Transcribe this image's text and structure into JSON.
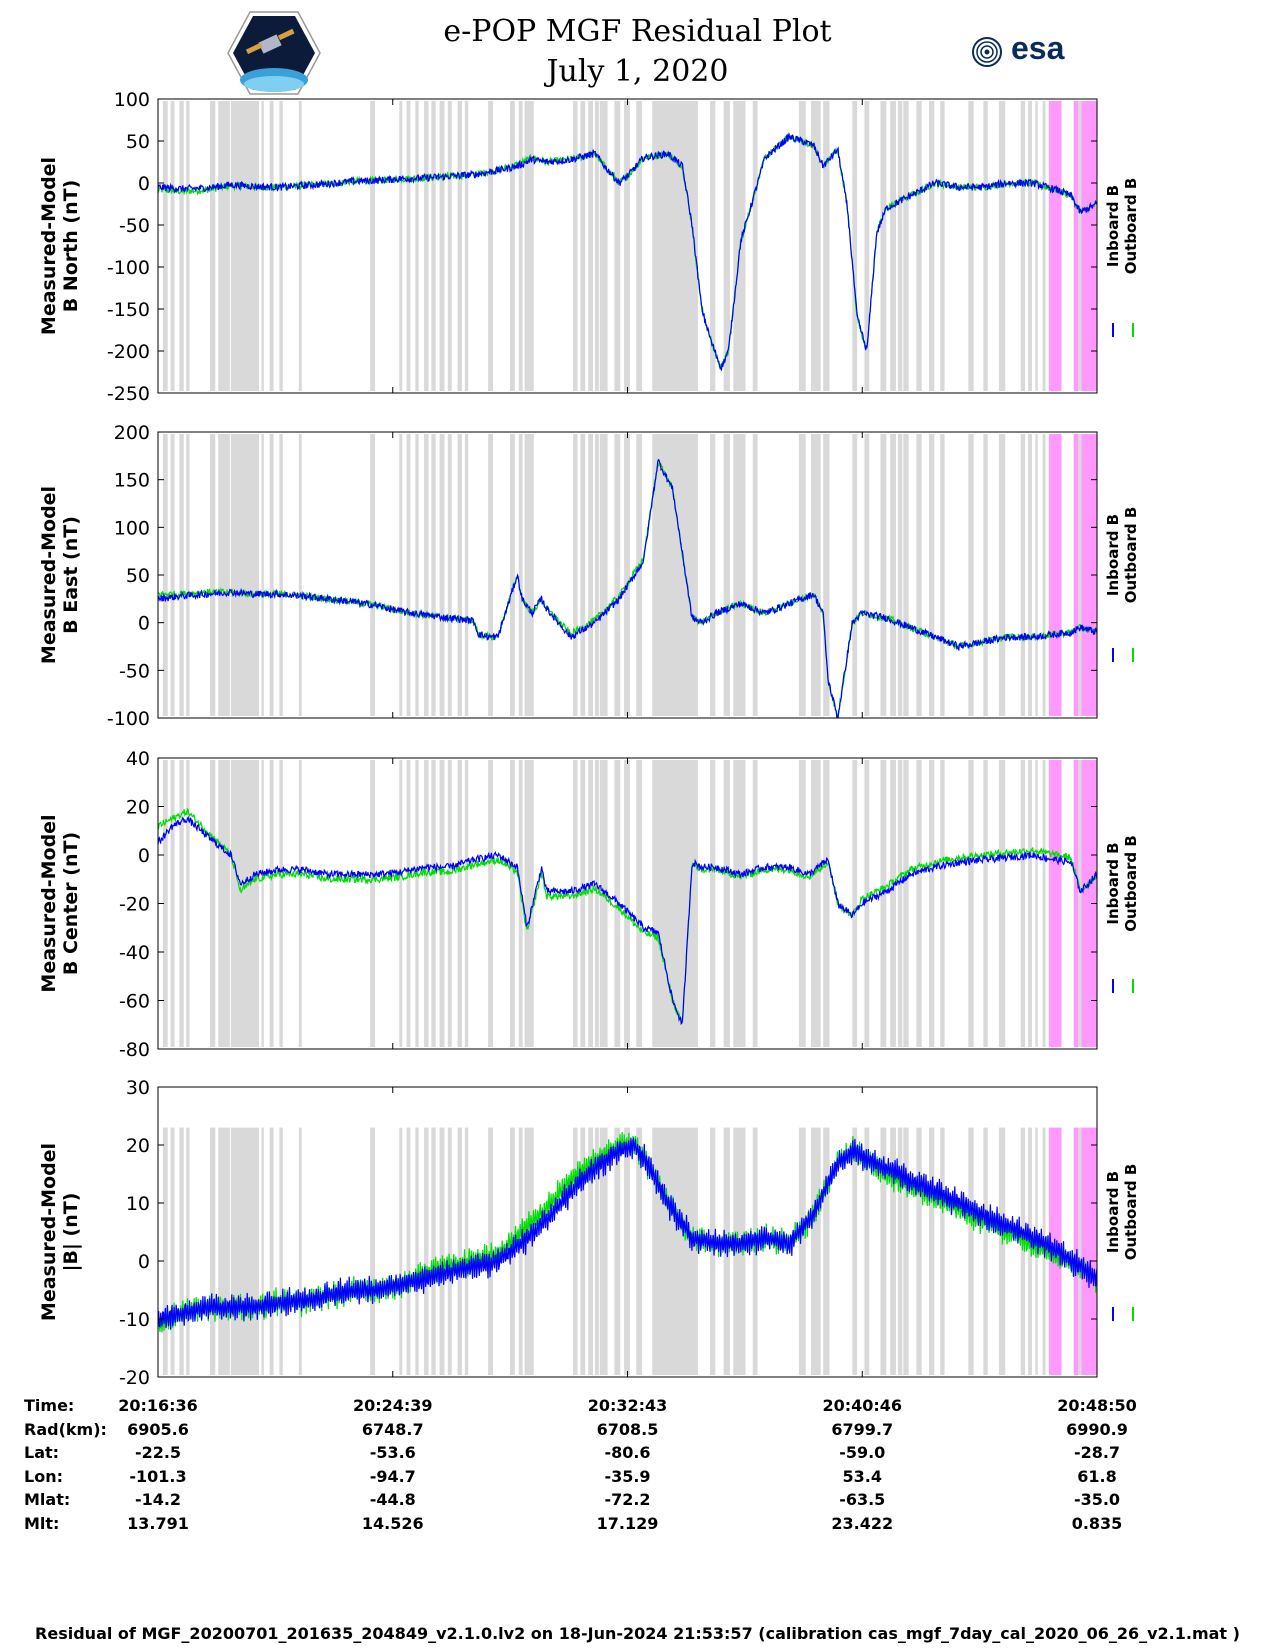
{
  "title_line1": "e-POP MGF Residual Plot",
  "title_line2": "July 1, 2020",
  "logos": {
    "left": "cassiope-satellite-logo",
    "right_text": "esa"
  },
  "colors": {
    "inboard": "#0000ff",
    "outboard": "#00dd00",
    "gap": "#d9d9d9",
    "flag": "#ff99ff",
    "axis": "#000000"
  },
  "legend": {
    "inboard": "Inboard B",
    "outboard": "Outboard B"
  },
  "time_axis": {
    "ticks": [
      "20:16:36",
      "20:24:39",
      "20:32:43",
      "20:40:46",
      "20:48:50"
    ],
    "start_s": 0,
    "end_s": 1934
  },
  "info_table": {
    "labels": [
      "Time:",
      "Rad(km):",
      "Lat:",
      "Lon:",
      "Mlat:",
      "Mlt:"
    ],
    "columns": [
      [
        "20:16:36",
        "6905.6",
        "-22.5",
        "-101.3",
        "-14.2",
        "13.791"
      ],
      [
        "20:24:39",
        "6748.7",
        "-53.6",
        "-94.7",
        "-44.8",
        "14.526"
      ],
      [
        "20:32:43",
        "6708.5",
        "-80.6",
        "-35.9",
        "-72.2",
        "17.129"
      ],
      [
        "20:40:46",
        "6799.7",
        "-59.0",
        "53.4",
        "-63.5",
        "23.422"
      ],
      [
        "20:48:50",
        "6990.9",
        "-28.7",
        "61.8",
        "-35.0",
        "0.835"
      ]
    ]
  },
  "footer": "Residual of MGF_20200701_201635_204849_v2.1.0.lv2 on 18-Jun-2024 21:53:57 (calibration cas_mgf_7day_cal_2020_06_26_v2.1.mat )",
  "chart_data": [
    {
      "type": "line",
      "ylabel": [
        "Measured-Model",
        "B North (nT)"
      ],
      "ylim": [
        -250,
        100
      ],
      "yticks": [
        100,
        50,
        0,
        -50,
        -100,
        -150,
        -200,
        -250
      ],
      "x_seconds": [
        0,
        50,
        100,
        150,
        200,
        250,
        300,
        350,
        400,
        450,
        500,
        550,
        600,
        650,
        700,
        740,
        770,
        800,
        850,
        900,
        920,
        950,
        970,
        1000,
        1050,
        1080,
        1100,
        1120,
        1140,
        1160,
        1175,
        1200,
        1250,
        1300,
        1350,
        1370,
        1400,
        1420,
        1440,
        1460,
        1480,
        1500,
        1550,
        1600,
        1650,
        1700,
        1750,
        1800,
        1850,
        1880,
        1900,
        1934
      ],
      "series": [
        {
          "name": "Inboard B",
          "values": [
            -5,
            -7,
            -6,
            -2,
            -4,
            -5,
            -3,
            -1,
            2,
            3,
            5,
            6,
            8,
            10,
            15,
            20,
            28,
            25,
            28,
            35,
            20,
            0,
            10,
            30,
            35,
            20,
            -50,
            -150,
            -190,
            -220,
            -200,
            -70,
            30,
            55,
            45,
            20,
            40,
            -30,
            -160,
            -200,
            -60,
            -30,
            -15,
            0,
            -5,
            -5,
            0,
            0,
            -8,
            -15,
            -35,
            -25
          ]
        },
        {
          "name": "Outboard B",
          "values": [
            -8,
            -10,
            -8,
            -3,
            -5,
            -5,
            -3,
            -1,
            2,
            3,
            5,
            6,
            8,
            10,
            15,
            22,
            30,
            25,
            28,
            35,
            20,
            0,
            10,
            30,
            35,
            20,
            -50,
            -150,
            -190,
            -220,
            -200,
            -70,
            30,
            55,
            45,
            20,
            40,
            -30,
            -160,
            -200,
            -60,
            -30,
            -15,
            0,
            -5,
            -5,
            0,
            0,
            -8,
            -15,
            -35,
            -25
          ]
        }
      ]
    },
    {
      "type": "line",
      "ylabel": [
        "Measured-Model",
        "B East (nT)"
      ],
      "ylim": [
        -100,
        200
      ],
      "yticks": [
        200,
        150,
        100,
        50,
        0,
        -50,
        -100
      ],
      "x_seconds": [
        0,
        50,
        100,
        150,
        200,
        250,
        300,
        350,
        400,
        450,
        500,
        550,
        600,
        650,
        660,
        680,
        700,
        740,
        750,
        770,
        790,
        800,
        850,
        900,
        950,
        1000,
        1030,
        1060,
        1100,
        1120,
        1150,
        1200,
        1250,
        1300,
        1350,
        1370,
        1380,
        1400,
        1430,
        1450,
        1500,
        1550,
        1600,
        1650,
        1700,
        1750,
        1800,
        1850,
        1880,
        1900,
        1934
      ],
      "series": [
        {
          "name": "Inboard B",
          "values": [
            25,
            28,
            30,
            32,
            30,
            30,
            28,
            25,
            22,
            18,
            12,
            8,
            5,
            2,
            -12,
            -15,
            -15,
            50,
            25,
            10,
            25,
            15,
            -15,
            0,
            25,
            65,
            170,
            140,
            5,
            0,
            10,
            20,
            10,
            20,
            30,
            10,
            -60,
            -100,
            0,
            10,
            5,
            -5,
            -15,
            -25,
            -20,
            -15,
            -15,
            -12,
            -10,
            -5,
            -10
          ]
        },
        {
          "name": "Outboard B",
          "values": [
            30,
            30,
            32,
            32,
            30,
            30,
            28,
            25,
            22,
            18,
            12,
            8,
            5,
            2,
            -12,
            -15,
            -15,
            50,
            25,
            10,
            25,
            15,
            -12,
            3,
            28,
            67,
            170,
            140,
            5,
            0,
            10,
            20,
            10,
            20,
            30,
            10,
            -60,
            -100,
            0,
            10,
            5,
            -5,
            -15,
            -25,
            -20,
            -15,
            -15,
            -12,
            -10,
            -5,
            -10
          ]
        }
      ]
    },
    {
      "type": "line",
      "ylabel": [
        "Measured-Model",
        "B Center (nT)"
      ],
      "ylim": [
        -80,
        40
      ],
      "yticks": [
        40,
        20,
        0,
        -20,
        -40,
        -60,
        -80
      ],
      "x_seconds": [
        0,
        30,
        60,
        100,
        150,
        170,
        200,
        250,
        300,
        350,
        400,
        450,
        500,
        550,
        600,
        650,
        700,
        740,
        760,
        790,
        800,
        850,
        900,
        950,
        1000,
        1030,
        1060,
        1080,
        1100,
        1120,
        1150,
        1200,
        1250,
        1300,
        1340,
        1380,
        1400,
        1430,
        1450,
        1500,
        1550,
        1600,
        1650,
        1700,
        1750,
        1800,
        1850,
        1880,
        1900,
        1934
      ],
      "series": [
        {
          "name": "Inboard B",
          "values": [
            5,
            12,
            15,
            8,
            0,
            -12,
            -8,
            -6,
            -6,
            -8,
            -8,
            -8,
            -7,
            -5,
            -5,
            -2,
            0,
            -5,
            -30,
            -5,
            -15,
            -15,
            -12,
            -20,
            -30,
            -32,
            -60,
            -70,
            -3,
            -5,
            -5,
            -8,
            -5,
            -5,
            -8,
            -2,
            -20,
            -25,
            -20,
            -15,
            -8,
            -5,
            -3,
            -2,
            -1,
            0,
            -2,
            -3,
            -15,
            -8
          ]
        },
        {
          "name": "Outboard B",
          "values": [
            12,
            15,
            18,
            10,
            0,
            -15,
            -10,
            -8,
            -8,
            -10,
            -10,
            -10,
            -9,
            -7,
            -7,
            -4,
            -2,
            -7,
            -32,
            -7,
            -17,
            -17,
            -14,
            -22,
            -32,
            -34,
            -60,
            -70,
            -4,
            -6,
            -6,
            -9,
            -6,
            -6,
            -9,
            -3,
            -20,
            -25,
            -18,
            -13,
            -6,
            -3,
            -1,
            0,
            1,
            2,
            0,
            -1,
            -15,
            -8
          ]
        }
      ]
    },
    {
      "type": "line",
      "ylabel": [
        "Measured-Model",
        "|B| (nT)"
      ],
      "ylim": [
        -20,
        30
      ],
      "yticks": [
        30,
        20,
        10,
        0,
        -10,
        -20
      ],
      "x_seconds": [
        0,
        50,
        100,
        150,
        200,
        250,
        300,
        350,
        400,
        450,
        500,
        550,
        600,
        650,
        700,
        750,
        800,
        850,
        900,
        950,
        980,
        1000,
        1050,
        1100,
        1150,
        1200,
        1250,
        1300,
        1350,
        1400,
        1430,
        1450,
        1500,
        1550,
        1600,
        1650,
        1700,
        1750,
        1800,
        1850,
        1900,
        1934
      ],
      "series": [
        {
          "name": "Inboard B",
          "values": [
            -10,
            -9,
            -8,
            -8,
            -8,
            -7,
            -7,
            -6,
            -5,
            -5,
            -4,
            -3,
            -2,
            -1,
            0,
            3,
            7,
            12,
            16,
            19,
            20,
            18,
            10,
            4,
            3,
            3,
            4,
            3,
            8,
            17,
            19,
            18,
            16,
            14,
            12,
            10,
            8,
            6,
            4,
            2,
            -1,
            -3
          ]
        },
        {
          "name": "Outboard B",
          "values": [
            -11,
            -9,
            -8,
            -8,
            -8,
            -7,
            -7,
            -6,
            -5,
            -5,
            -4,
            -2,
            -1,
            0,
            1,
            5,
            9,
            14,
            17,
            20,
            20,
            18,
            10,
            4,
            3,
            3,
            4,
            3,
            8,
            17,
            19,
            18,
            15,
            13,
            11,
            9,
            7,
            5,
            3,
            1,
            -1,
            -3
          ]
        }
      ]
    }
  ],
  "gap_intervals_s": [
    [
      10,
      20
    ],
    [
      26,
      34
    ],
    [
      44,
      53
    ],
    [
      58,
      65
    ],
    [
      107,
      118
    ],
    [
      124,
      148
    ],
    [
      150,
      208
    ],
    [
      213,
      218
    ],
    [
      230,
      238
    ],
    [
      250,
      257
    ],
    [
      290,
      296
    ],
    [
      437,
      447
    ],
    [
      497,
      503
    ],
    [
      512,
      520
    ],
    [
      530,
      537
    ],
    [
      548,
      557
    ],
    [
      563,
      572
    ],
    [
      580,
      590
    ],
    [
      597,
      605
    ],
    [
      617,
      626
    ],
    [
      632,
      639
    ],
    [
      680,
      690
    ],
    [
      725,
      735
    ],
    [
      743,
      751
    ],
    [
      755,
      774
    ],
    [
      855,
      864
    ],
    [
      870,
      880
    ],
    [
      886,
      896
    ],
    [
      900,
      908
    ],
    [
      910,
      926
    ],
    [
      940,
      952
    ],
    [
      960,
      972
    ],
    [
      985,
      997
    ],
    [
      1018,
      1112
    ],
    [
      1137,
      1148
    ],
    [
      1165,
      1178
    ],
    [
      1185,
      1210
    ],
    [
      1225,
      1235
    ],
    [
      1320,
      1334
    ],
    [
      1345,
      1365
    ],
    [
      1370,
      1383
    ],
    [
      1430,
      1440
    ],
    [
      1455,
      1465
    ],
    [
      1488,
      1500
    ],
    [
      1508,
      1520
    ],
    [
      1524,
      1533
    ],
    [
      1535,
      1546
    ],
    [
      1562,
      1573
    ],
    [
      1588,
      1599
    ],
    [
      1611,
      1620
    ],
    [
      1669,
      1680
    ],
    [
      1700,
      1709
    ],
    [
      1732,
      1745
    ],
    [
      1777,
      1786
    ],
    [
      1792,
      1800
    ],
    [
      1807,
      1812
    ],
    [
      1822,
      1828
    ],
    [
      1895,
      1902
    ]
  ],
  "flag_intervals_s": [
    [
      1835,
      1861
    ],
    [
      1886,
      1895
    ],
    [
      1902,
      1934
    ]
  ]
}
